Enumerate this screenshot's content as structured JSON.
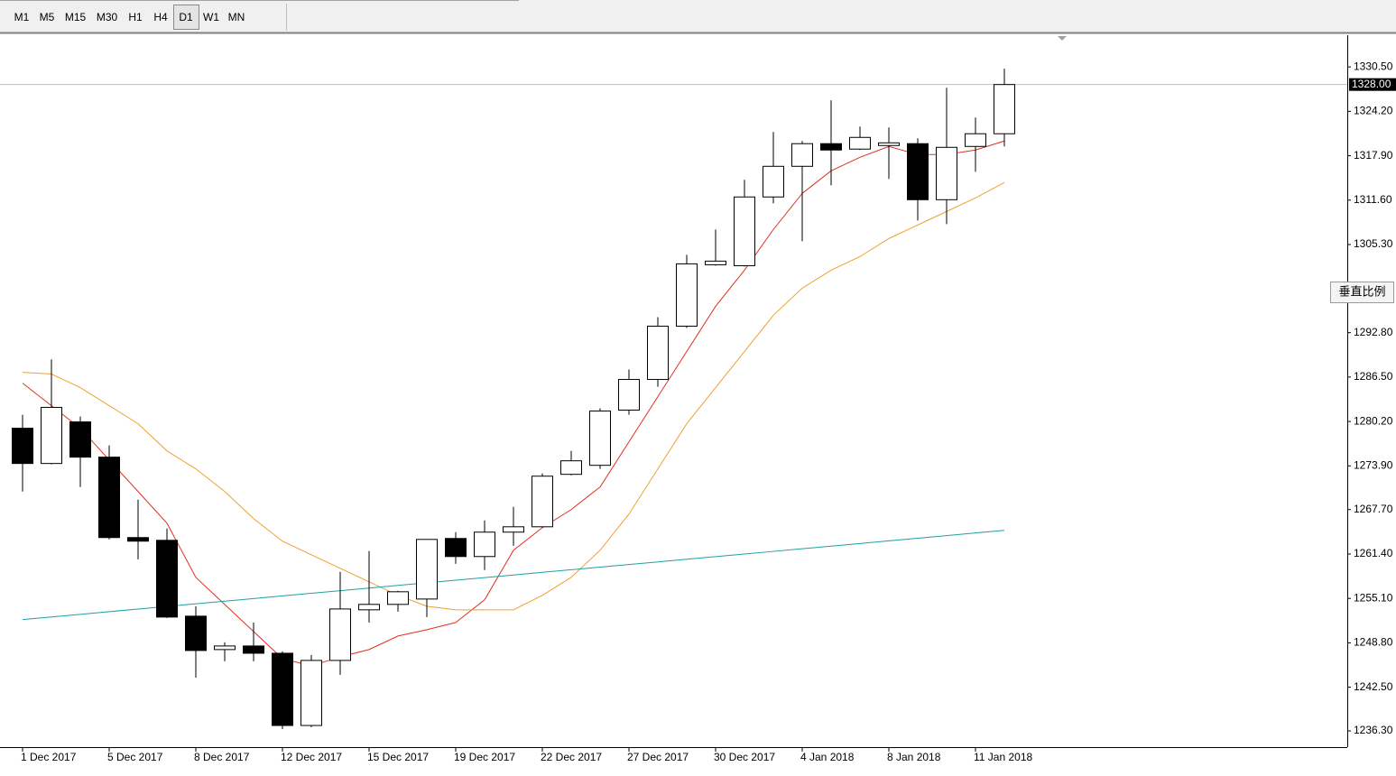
{
  "toolbar": {
    "buttons": [
      "M1",
      "M5",
      "M15",
      "M30",
      "H1",
      "H4",
      "D1",
      "W1",
      "MN"
    ],
    "selected": "D1"
  },
  "scale_button": "垂直比例",
  "chart_data": {
    "type": "candlestick",
    "categories": [
      "1 Dec 2017",
      null,
      null,
      "5 Dec 2017",
      null,
      null,
      "8 Dec 2017",
      null,
      null,
      "12 Dec 2017",
      null,
      null,
      "15 Dec 2017",
      null,
      null,
      "19 Dec 2017",
      null,
      null,
      "22 Dec 2017",
      null,
      null,
      "27 Dec 2017",
      null,
      null,
      "30 Dec 2017",
      null,
      null,
      "4 Jan 2018",
      null,
      null,
      "8 Jan 2018",
      null,
      null,
      "11 Jan 2018",
      null
    ],
    "open": [
      1279.24,
      1274.24,
      1280.14,
      1275.14,
      1263.73,
      1263.34,
      1252.58,
      1247.84,
      1248.35,
      1247.32,
      1237.07,
      1246.3,
      1253.48,
      1254.25,
      1255.01,
      1263.6,
      1261.04,
      1264.5,
      1265.26,
      1272.7,
      1273.98,
      1281.81,
      1286.16,
      1293.72,
      1302.43,
      1302.3,
      1312.05,
      1316.4,
      1319.61,
      1318.84,
      1319.35,
      1319.61,
      1311.66,
      1319.22,
      1321.02
    ],
    "high": [
      1281.16,
      1289.02,
      1280.9,
      1276.8,
      1269.11,
      1265.01,
      1253.99,
      1248.86,
      1251.68,
      1247.58,
      1247.07,
      1258.86,
      1261.81,
      1256.17,
      1263.47,
      1264.5,
      1266.16,
      1268.09,
      1272.83,
      1276.03,
      1282.07,
      1287.57,
      1295.0,
      1303.84,
      1307.43,
      1314.48,
      1321.27,
      1319.99,
      1325.76,
      1322.04,
      1321.91,
      1320.38,
      1327.55,
      1323.32,
      1330.24
    ],
    "low": [
      1270.26,
      1274.11,
      1270.9,
      1263.47,
      1260.65,
      1252.32,
      1243.86,
      1246.17,
      1246.17,
      1236.56,
      1236.82,
      1244.25,
      1251.68,
      1253.22,
      1252.45,
      1260.01,
      1259.12,
      1262.57,
      1265.14,
      1272.57,
      1273.47,
      1281.16,
      1285.13,
      1293.46,
      1302.3,
      1302.18,
      1311.15,
      1305.77,
      1313.71,
      1318.71,
      1314.61,
      1308.71,
      1308.2,
      1315.63,
      1319.22
    ],
    "close": [
      1274.24,
      1282.2,
      1275.14,
      1263.73,
      1263.22,
      1252.45,
      1247.71,
      1248.35,
      1247.32,
      1237.07,
      1246.3,
      1253.6,
      1254.25,
      1256.04,
      1263.47,
      1261.04,
      1264.5,
      1265.26,
      1272.44,
      1274.62,
      1281.68,
      1286.16,
      1293.72,
      1302.56,
      1302.95,
      1312.05,
      1316.4,
      1319.61,
      1318.71,
      1320.5,
      1319.73,
      1311.66,
      1319.09,
      1321.02,
      1328.0
    ],
    "up_color": "#ffffff",
    "down_color": "#000000",
    "overlays": [
      {
        "color": "#e0301e",
        "values": [
          1285.64,
          1282.44,
          1279.24,
          1274.75,
          1270.26,
          1265.78,
          1258.09,
          1254.24,
          1250.4,
          1246.56,
          1245.53,
          1246.81,
          1247.84,
          1249.76,
          1250.66,
          1251.68,
          1254.89,
          1261.93,
          1265.14,
          1267.7,
          1270.91,
          1277.31,
          1283.72,
          1290.13,
          1296.54,
          1301.66,
          1307.43,
          1312.56,
          1315.76,
          1317.68,
          1319.22,
          1318.07,
          1318.07,
          1318.71,
          1319.99
        ]
      },
      {
        "color": "#f0a030",
        "values": [
          1287.18,
          1286.93,
          1285.0,
          1282.44,
          1279.88,
          1276.03,
          1273.47,
          1270.26,
          1266.42,
          1263.22,
          1261.29,
          1259.37,
          1257.45,
          1255.53,
          1253.99,
          1253.48,
          1253.48,
          1253.48,
          1255.53,
          1258.09,
          1261.93,
          1267.06,
          1273.47,
          1279.88,
          1285.0,
          1290.13,
          1295.26,
          1299.1,
          1301.66,
          1303.59,
          1306.15,
          1308.07,
          1309.99,
          1311.92,
          1314.1
        ]
      },
      {
        "color": "#20a0a0",
        "values": [
          1252.1,
          1252.47,
          1252.84,
          1253.22,
          1253.59,
          1253.96,
          1254.33,
          1254.7,
          1255.08,
          1255.45,
          1255.82,
          1256.19,
          1256.56,
          1256.94,
          1257.31,
          1257.68,
          1258.05,
          1258.42,
          1258.8,
          1259.17,
          1259.54,
          1259.91,
          1260.28,
          1260.66,
          1261.03,
          1261.4,
          1261.77,
          1262.14,
          1262.52,
          1262.89,
          1263.26,
          1263.63,
          1264.0,
          1264.38,
          1264.75
        ]
      }
    ],
    "last_price": {
      "value": 1328.0,
      "label": "1328.00"
    },
    "ylim": [
      1234.0,
      1335.0
    ],
    "yticks": [
      {
        "value": 1330.5,
        "label": "1330.50"
      },
      {
        "value": 1324.2,
        "label": "1324.20"
      },
      {
        "value": 1317.9,
        "label": "1317.90"
      },
      {
        "value": 1311.6,
        "label": "1311.60"
      },
      {
        "value": 1305.3,
        "label": "1305.30"
      },
      {
        "value": 1292.8,
        "label": "1292.80"
      },
      {
        "value": 1286.5,
        "label": "1286.50"
      },
      {
        "value": 1280.2,
        "label": "1280.20"
      },
      {
        "value": 1273.9,
        "label": "1273.90"
      },
      {
        "value": 1267.7,
        "label": "1267.70"
      },
      {
        "value": 1261.4,
        "label": "1261.40"
      },
      {
        "value": 1255.1,
        "label": "1255.10"
      },
      {
        "value": 1248.8,
        "label": "1248.80"
      },
      {
        "value": 1242.5,
        "label": "1242.50"
      },
      {
        "value": 1236.3,
        "label": "1236.30"
      }
    ]
  }
}
